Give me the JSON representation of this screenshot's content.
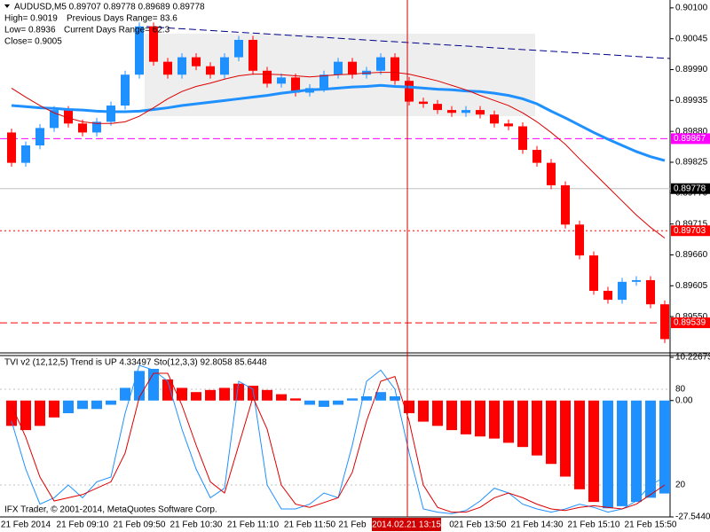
{
  "header": {
    "symbol_line": "AUDUSD,M5  0.89707 0.89778 0.89689 0.89778",
    "high": "High= 0.9019",
    "prev_range": "Previous Days Range= 83.6",
    "low": "Low= 0.8936",
    "curr_range": "Current Days Range= 62.3",
    "close": "Close= 0.9005"
  },
  "cursor_time": "2014.02.21 13:15",
  "copyright": "IFX Trader, © 2001-2014, MetaQuotes Software Corp.",
  "chart_data": [
    {
      "type": "candlestick",
      "categories": [
        null,
        "21 Feb 2014",
        null,
        null,
        null,
        "21 Feb 09:10",
        null,
        null,
        null,
        "21 Feb 09:50",
        null,
        null,
        null,
        "21 Feb 10:30",
        null,
        null,
        null,
        "21 Feb 11:10",
        null,
        null,
        null,
        "21 Feb 11:50",
        null,
        null,
        "21 Feb",
        null,
        null,
        null,
        null,
        null,
        null,
        "0",
        null,
        "21 Feb 13:50",
        null,
        null,
        null,
        "21 Feb 14:30",
        null,
        null,
        null,
        "21 Feb 15:10",
        null,
        null,
        null,
        "21 Feb 15:50",
        null
      ],
      "open": [
        0.89878,
        0.89824,
        0.89855,
        0.89886,
        0.89918,
        0.89894,
        0.89878,
        0.89897,
        0.89926,
        0.89981,
        0.90067,
        0.90004,
        0.89981,
        0.90012,
        0.89996,
        0.89981,
        0.90012,
        0.90043,
        0.89988,
        0.89965,
        0.89976,
        0.89949,
        0.89957,
        0.89981,
        0.90004,
        0.89981,
        0.89988,
        0.90012,
        0.8997,
        0.89933,
        0.89929,
        0.89918,
        0.89913,
        0.89918,
        0.8991,
        0.89894,
        0.89889,
        0.89847,
        0.89824,
        0.89784,
        0.89714,
        0.89659,
        0.89596,
        0.8958,
        0.89612,
        0.89615,
        0.89572
      ],
      "high": [
        0.89885,
        0.89862,
        0.89893,
        0.89925,
        0.89925,
        0.89901,
        0.89904,
        0.89933,
        0.89988,
        0.90074,
        0.90074,
        0.90011,
        0.90019,
        0.90019,
        0.90003,
        0.90019,
        0.9005,
        0.9005,
        0.89995,
        0.89983,
        0.89983,
        0.89964,
        0.89988,
        0.90011,
        0.90011,
        0.89995,
        0.90019,
        0.90019,
        0.89977,
        0.8994,
        0.89936,
        0.89925,
        0.89925,
        0.89925,
        0.89917,
        0.89901,
        0.89896,
        0.89854,
        0.89831,
        0.89791,
        0.89721,
        0.89666,
        0.89603,
        0.89619,
        0.89622,
        0.89622,
        0.89579
      ],
      "low": [
        0.89817,
        0.89817,
        0.89848,
        0.89879,
        0.89887,
        0.89871,
        0.89871,
        0.8989,
        0.89919,
        0.89974,
        0.89997,
        0.89974,
        0.89974,
        0.89989,
        0.89974,
        0.89974,
        0.90005,
        0.89981,
        0.89958,
        0.89958,
        0.89942,
        0.89942,
        0.8995,
        0.89974,
        0.89974,
        0.89974,
        0.89981,
        0.89963,
        0.89926,
        0.89922,
        0.89911,
        0.89906,
        0.89906,
        0.89903,
        0.89887,
        0.89882,
        0.8984,
        0.89817,
        0.89777,
        0.89707,
        0.89652,
        0.89589,
        0.89573,
        0.89573,
        0.89605,
        0.89565,
        0.89503
      ],
      "close": [
        0.89824,
        0.89855,
        0.89886,
        0.89918,
        0.89894,
        0.89878,
        0.89897,
        0.89926,
        0.89981,
        0.90067,
        0.90004,
        0.89981,
        0.90012,
        0.89996,
        0.89981,
        0.90012,
        0.90043,
        0.89988,
        0.89965,
        0.89976,
        0.89949,
        0.89957,
        0.89981,
        0.90004,
        0.89981,
        0.89988,
        0.90012,
        0.8997,
        0.89933,
        0.89929,
        0.89918,
        0.89913,
        0.89918,
        0.8991,
        0.89894,
        0.89889,
        0.89847,
        0.89824,
        0.89784,
        0.89714,
        0.89659,
        0.89596,
        0.8958,
        0.89612,
        0.89615,
        0.89572,
        0.8951
      ],
      "up_color": "#1e90ff",
      "down_color": "#ff0000",
      "series": [
        {
          "color": "#1e90ff",
          "width": 3,
          "values": [
            0.89926,
            0.89924,
            0.89922,
            0.89921,
            0.89919,
            0.89918,
            0.89916,
            0.89915,
            0.89915,
            0.89916,
            0.89919,
            0.89922,
            0.89926,
            0.89929,
            0.89932,
            0.89935,
            0.89938,
            0.89941,
            0.89944,
            0.89948,
            0.89951,
            0.89954,
            0.89955,
            0.89957,
            0.89959,
            0.8996,
            0.89962,
            0.8996,
            0.89959,
            0.89957,
            0.89955,
            0.89954,
            0.89952,
            0.89951,
            0.89948,
            0.89944,
            0.89938,
            0.89929,
            0.89916,
            0.89904,
            0.89891,
            0.89878,
            0.89866,
            0.89855,
            0.89844,
            0.89835,
            0.89828
          ]
        },
        {
          "color": "#dd0000",
          "width": 1,
          "values": [
            0.89957,
            0.89941,
            0.89926,
            0.89913,
            0.89904,
            0.89897,
            0.89894,
            0.89894,
            0.89897,
            0.89907,
            0.89922,
            0.89938,
            0.89951,
            0.8996,
            0.89966,
            0.89973,
            0.89979,
            0.89982,
            0.89982,
            0.89981,
            0.89979,
            0.89977,
            0.89979,
            0.89981,
            0.89982,
            0.89984,
            0.89985,
            0.89985,
            0.89982,
            0.89976,
            0.8997,
            0.89962,
            0.89954,
            0.89944,
            0.89935,
            0.89926,
            0.89913,
            0.89897,
            0.89878,
            0.89857,
            0.89831,
            0.89806,
            0.89781,
            0.89756,
            0.89731,
            0.89709,
            0.8969
          ]
        }
      ],
      "hlines": [
        {
          "value": 0.89867,
          "color": "#ff00ff",
          "label_color": "#ff00ff",
          "style": "dash"
        },
        {
          "value": 0.89778,
          "color": "#c0c0c0",
          "label_color": "#000000",
          "style": "solid"
        },
        {
          "value": 0.89703,
          "color": "#ff0000",
          "label_color": "#ff0000",
          "style": "dot"
        },
        {
          "value": 0.89539,
          "color": "#ff0000",
          "label_color": "#ff0000",
          "style": "dash"
        }
      ],
      "ylim": [
        0.89487,
        0.90114
      ],
      "yticks": [
        {
          "value": 0.901,
          "label": "0.90100"
        },
        0.90045,
        {
          "value": 0.8999,
          "label": "0.89990"
        },
        0.89935,
        {
          "value": 0.8988,
          "label": "0.89880"
        },
        0.89825,
        {
          "value": 0.8977,
          "label": "0.89770"
        },
        0.89715,
        {
          "value": 0.8966,
          "label": "0.89660"
        },
        0.89605,
        {
          "value": 0.8955,
          "label": "0.89550"
        }
      ]
    },
    {
      "type": "combo",
      "title": "TVI v2 (12,12,5) Trend is UP 4.33497  Sto(12,3,3) 92.8058 85.6448",
      "values": [
        -6,
        -7,
        -6,
        -4,
        -3,
        -2,
        -2,
        -1,
        3,
        7,
        7.5,
        5,
        3,
        2,
        2.5,
        3,
        4,
        3.5,
        2.5,
        1.5,
        0.5,
        -1,
        -1.5,
        -1,
        0.5,
        1,
        2,
        1,
        -3,
        -5,
        -6,
        -7,
        -8,
        -8.5,
        -9,
        -10,
        -11,
        -13,
        -15,
        -18,
        -21,
        -24,
        -25.5,
        -25,
        -24,
        -23,
        -22
      ],
      "bar_colors": [
        "#ff0000",
        "#ff0000",
        "#ff0000",
        "#ff0000",
        "#1e90ff",
        "#1e90ff",
        "#1e90ff",
        "#1e90ff",
        "#1e90ff",
        "#1e90ff",
        "#1e90ff",
        "#ff0000",
        "#ff0000",
        "#ff0000",
        "#ff0000",
        "#ff0000",
        "#ff0000",
        "#ff0000",
        "#ff0000",
        "#ff0000",
        "#ff0000",
        "#1e90ff",
        "#1e90ff",
        "#1e90ff",
        "#1e90ff",
        "#1e90ff",
        "#1e90ff",
        "#1e90ff",
        "#ff0000",
        "#ff0000",
        "#ff0000",
        "#ff0000",
        "#ff0000",
        "#ff0000",
        "#ff0000",
        "#ff0000",
        "#ff0000",
        "#ff0000",
        "#ff0000",
        "#ff0000",
        "#ff0000",
        "#ff0000",
        "#1e90ff",
        "#1e90ff",
        "#1e90ff",
        "#1e90ff",
        "#1e90ff"
      ],
      "series": [
        {
          "color": "#1e90ff",
          "axis": "y2",
          "values": [
            60,
            30,
            8,
            12,
            20,
            12,
            22,
            25,
            65,
            95,
            92,
            85,
            55,
            30,
            12,
            18,
            85,
            80,
            20,
            5,
            5,
            8,
            15,
            12,
            45,
            85,
            92,
            80,
            40,
            5,
            3,
            2,
            4,
            10,
            18,
            15,
            8,
            5,
            3,
            5,
            8,
            6,
            3,
            5,
            10,
            20,
            25
          ]
        },
        {
          "color": "#dd0000",
          "axis": "y2",
          "values": [
            70,
            50,
            25,
            10,
            12,
            14,
            18,
            22,
            40,
            75,
            90,
            90,
            70,
            45,
            22,
            15,
            45,
            75,
            55,
            20,
            8,
            6,
            9,
            12,
            28,
            60,
            85,
            88,
            60,
            20,
            6,
            3,
            3,
            6,
            12,
            15,
            12,
            8,
            5,
            4,
            6,
            7,
            6,
            5,
            8,
            14,
            20
          ]
        }
      ],
      "ylim": [
        -27.54406,
        10.22673
      ],
      "yticks": [
        10.22673,
        {
          "value": 0,
          "label": "0.00"
        },
        -27.54406
      ],
      "y2lim": [
        0,
        100
      ],
      "y2ticks": [
        80,
        20
      ]
    }
  ]
}
